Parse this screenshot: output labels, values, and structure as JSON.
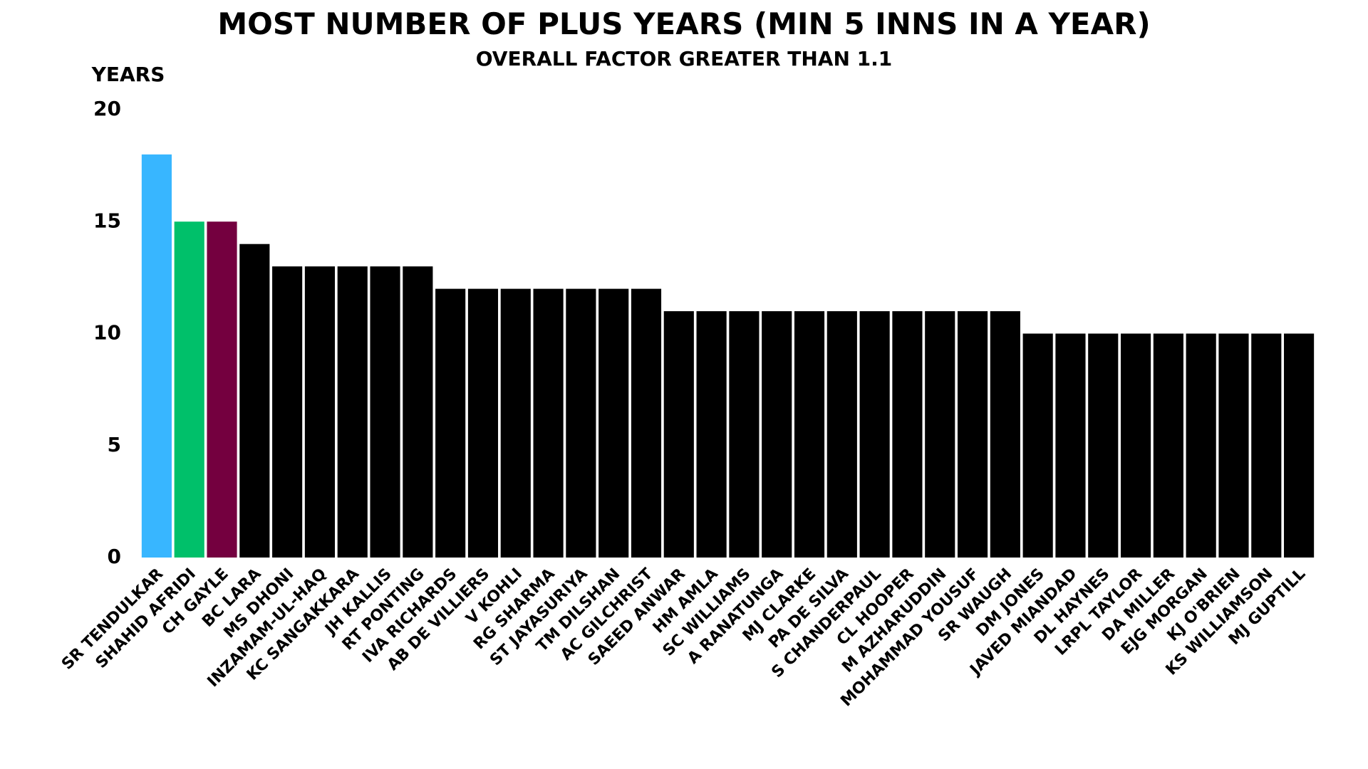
{
  "chart_data": {
    "type": "bar",
    "title": "MOST NUMBER OF PLUS YEARS (MIN 5 INNS IN A YEAR)",
    "subtitle": "OVERALL FACTOR GREATER THAN 1.1",
    "y_label": "YEARS",
    "categories": [
      "SR TENDULKAR",
      "SHAHID AFRIDI",
      "CH GAYLE",
      "BC LARA",
      "MS DHONI",
      "INZAMAM-UL-HAQ",
      "KC SANGAKKARA",
      "JH KALLIS",
      "RT PONTING",
      "IVA RICHARDS",
      "AB DE VILLIERS",
      "V KOHLI",
      "RG SHARMA",
      "ST JAYASURIYA",
      "TM DILSHAN",
      "AC GILCHRIST",
      "SAEED ANWAR",
      "HM AMLA",
      "SC WILLIAMS",
      "A RANATUNGA",
      "MJ CLARKE",
      "PA DE SILVA",
      "S CHANDERPAUL",
      "CL HOOPER",
      "M AZHARUDDIN",
      "MOHAMMAD YOUSUF",
      "SR WAUGH",
      "DM JONES",
      "JAVED MIANDAD",
      "DL HAYNES",
      "LRPL TAYLOR",
      "DA MILLER",
      "EJG MORGAN",
      "KJ O'BRIEN",
      "KS WILLIAMSON",
      "MJ GUPTILL"
    ],
    "values": [
      18,
      15,
      15,
      14,
      13,
      13,
      13,
      13,
      13,
      12,
      12,
      12,
      12,
      12,
      12,
      12,
      11,
      11,
      11,
      11,
      11,
      11,
      11,
      11,
      11,
      11,
      11,
      10,
      10,
      10,
      10,
      10,
      10,
      10,
      10,
      10
    ],
    "colors": [
      "#38b6ff",
      "#00c06a",
      "#74003f",
      "#000000",
      "#000000",
      "#000000",
      "#000000",
      "#000000",
      "#000000",
      "#000000",
      "#000000",
      "#000000",
      "#000000",
      "#000000",
      "#000000",
      "#000000",
      "#000000",
      "#000000",
      "#000000",
      "#000000",
      "#000000",
      "#000000",
      "#000000",
      "#000000",
      "#000000",
      "#000000",
      "#000000",
      "#000000",
      "#000000",
      "#000000",
      "#000000",
      "#000000",
      "#000000",
      "#000000",
      "#000000",
      "#000000"
    ],
    "ylim": [
      0,
      20
    ],
    "yticks": [
      0,
      5,
      10,
      15,
      20
    ],
    "grid": false
  }
}
